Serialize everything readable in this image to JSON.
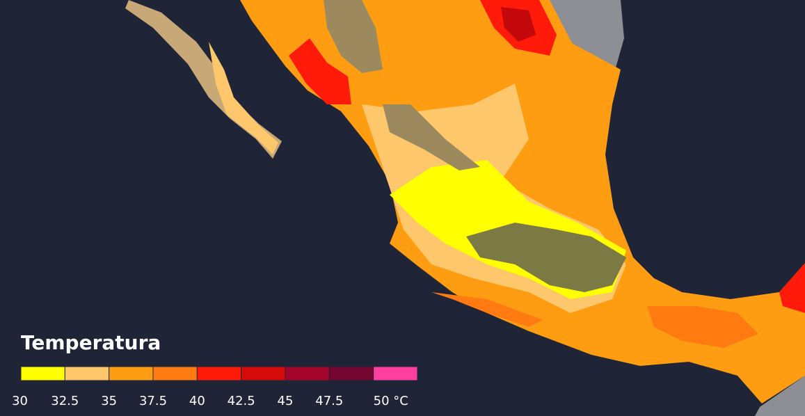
{
  "legend": {
    "title": "Temperatura",
    "items": [
      {
        "label": "30",
        "color": "#ffff00"
      },
      {
        "label": "32.5",
        "color": "#ffc76b"
      },
      {
        "label": "35",
        "color": "#ff9d12"
      },
      {
        "label": "37.5",
        "color": "#ff7a10"
      },
      {
        "label": "40",
        "color": "#ff1a0a"
      },
      {
        "label": "42.5",
        "color": "#d60a0a"
      },
      {
        "label": "45",
        "color": "#a5052a"
      },
      {
        "label": "47.5",
        "color": "#74052e"
      },
      {
        "label": "50 °C",
        "color": "#ff3fa0"
      }
    ]
  }
}
